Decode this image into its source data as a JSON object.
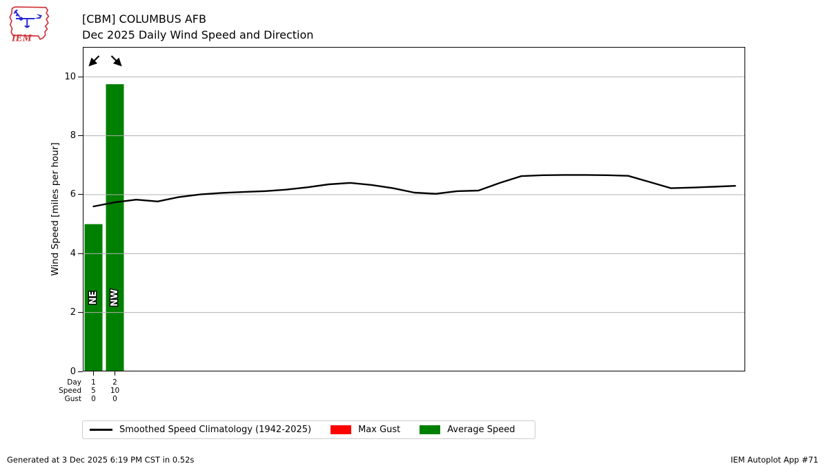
{
  "header": {
    "logo_text": "IEM",
    "title_line1": "[CBM] COLUMBUS AFB",
    "title_line2": "Dec 2025 Daily Wind Speed and Direction"
  },
  "chart_data": {
    "type": "bar",
    "station": "[CBM] COLUMBUS AFB",
    "title": "Dec 2025 Daily Wind Speed and Direction",
    "ylabel": "Wind Speed [miles per hour]",
    "ylim": [
      0,
      11
    ],
    "yticks": [
      0,
      2,
      4,
      6,
      8,
      10
    ],
    "grid": true,
    "legend_position": "bottom",
    "colors": {
      "average_speed_bar": "#008000",
      "max_gust_bar": "#ff0000",
      "climatology_line": "#000000",
      "gridline": "#b0b0b0",
      "direction_label_fill": "#ffffff",
      "direction_label_outline": "#000000"
    },
    "bars": {
      "name": "Average Speed",
      "days": [
        1,
        2
      ],
      "values": [
        5.0,
        9.75
      ],
      "directions": [
        "NE",
        "NW"
      ]
    },
    "gusts": {
      "name": "Max Gust",
      "days": [
        1,
        2
      ],
      "values": [
        0,
        0
      ]
    },
    "climatology": {
      "name": "Smoothed Speed Climatology (1942-2025)",
      "days": [
        1,
        2,
        3,
        4,
        5,
        6,
        7,
        8,
        9,
        10,
        11,
        12,
        13,
        14,
        15,
        16,
        17,
        18,
        19,
        20,
        21,
        22,
        23,
        24,
        25,
        26,
        27,
        28,
        29,
        30,
        31
      ],
      "values": [
        5.6,
        5.74,
        5.83,
        5.77,
        5.92,
        6.01,
        6.06,
        6.09,
        6.12,
        6.17,
        6.25,
        6.35,
        6.4,
        6.33,
        6.22,
        6.07,
        6.03,
        6.12,
        6.14,
        6.4,
        6.63,
        6.66,
        6.67,
        6.67,
        6.66,
        6.64,
        6.43,
        6.22,
        6.24,
        6.27,
        6.3
      ]
    },
    "table": {
      "rows": [
        {
          "label": "Day",
          "values": [
            "1",
            "2"
          ]
        },
        {
          "label": "Speed",
          "values": [
            "5",
            "10"
          ]
        },
        {
          "label": "Gust",
          "values": [
            "0",
            "0"
          ]
        }
      ]
    }
  },
  "legend": {
    "items": [
      {
        "label": "Smoothed Speed Climatology (1942-2025)",
        "swatch": "line",
        "color": "#000000"
      },
      {
        "label": "Max Gust",
        "swatch": "rect",
        "color": "#ff0000"
      },
      {
        "label": "Average Speed",
        "swatch": "rect",
        "color": "#008000"
      }
    ]
  },
  "footer": {
    "left": "Generated at 3 Dec 2025 6:19 PM CST in 0.52s",
    "right": "IEM Autoplot App #71"
  }
}
